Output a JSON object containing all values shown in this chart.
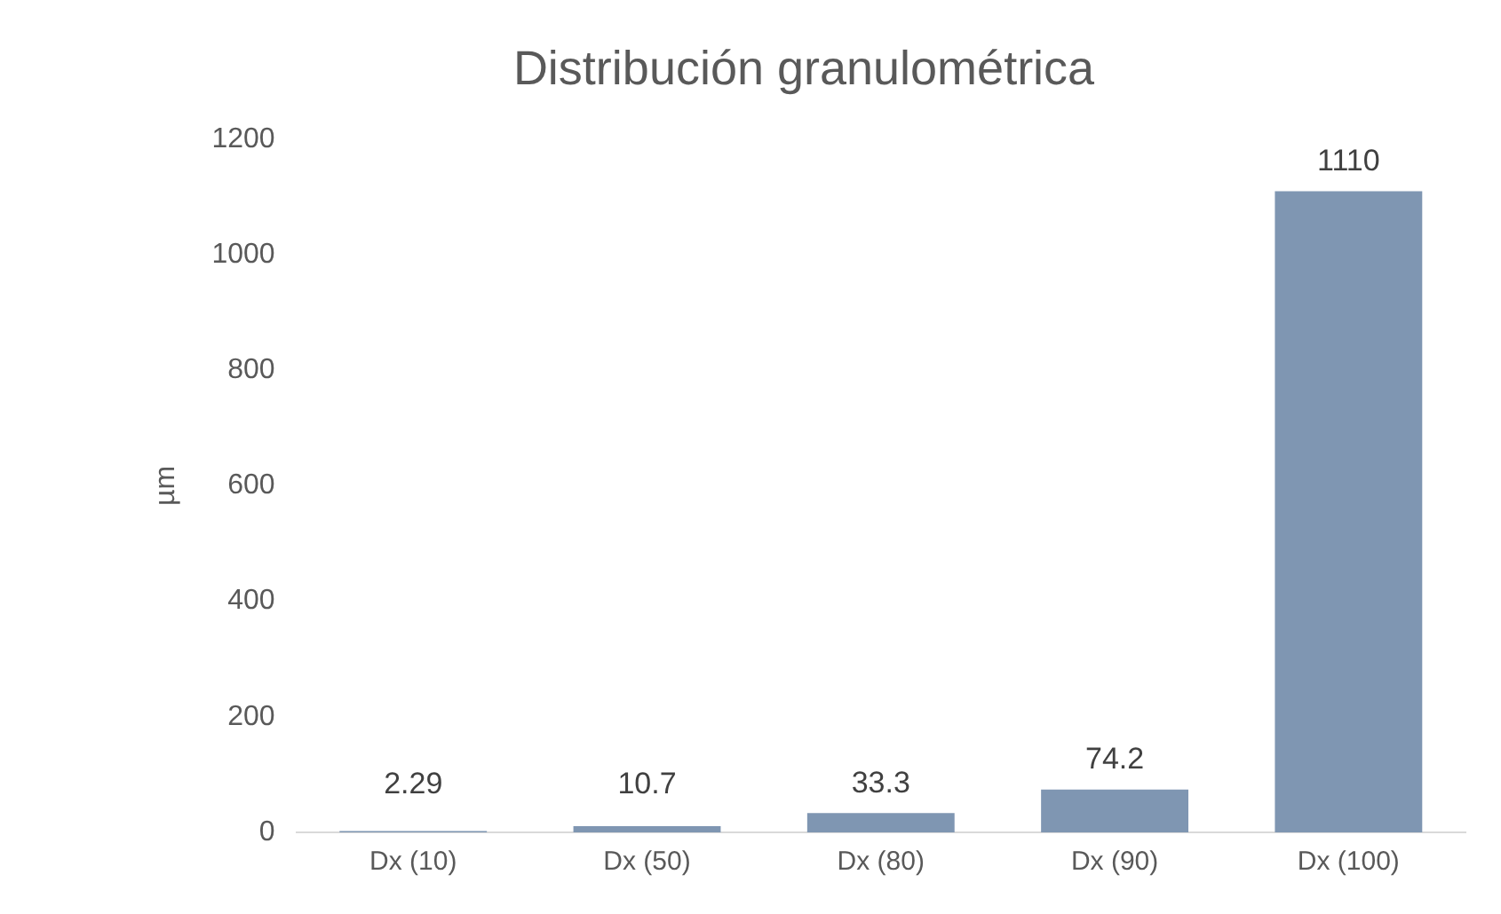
{
  "chart_data": {
    "type": "bar",
    "title": "Distribución granulométrica",
    "ylabel": "µm",
    "categories": [
      "Dx (10)",
      "Dx (50)",
      "Dx (80)",
      "Dx (90)",
      "Dx (100)"
    ],
    "values": [
      2.29,
      10.7,
      33.3,
      74.2,
      1110
    ],
    "color": "#7f96b2",
    "ylim": [
      0,
      1200
    ],
    "yticks": [
      0,
      200,
      400,
      600,
      800,
      1000,
      1200
    ],
    "grid": false,
    "data_labels": true
  }
}
